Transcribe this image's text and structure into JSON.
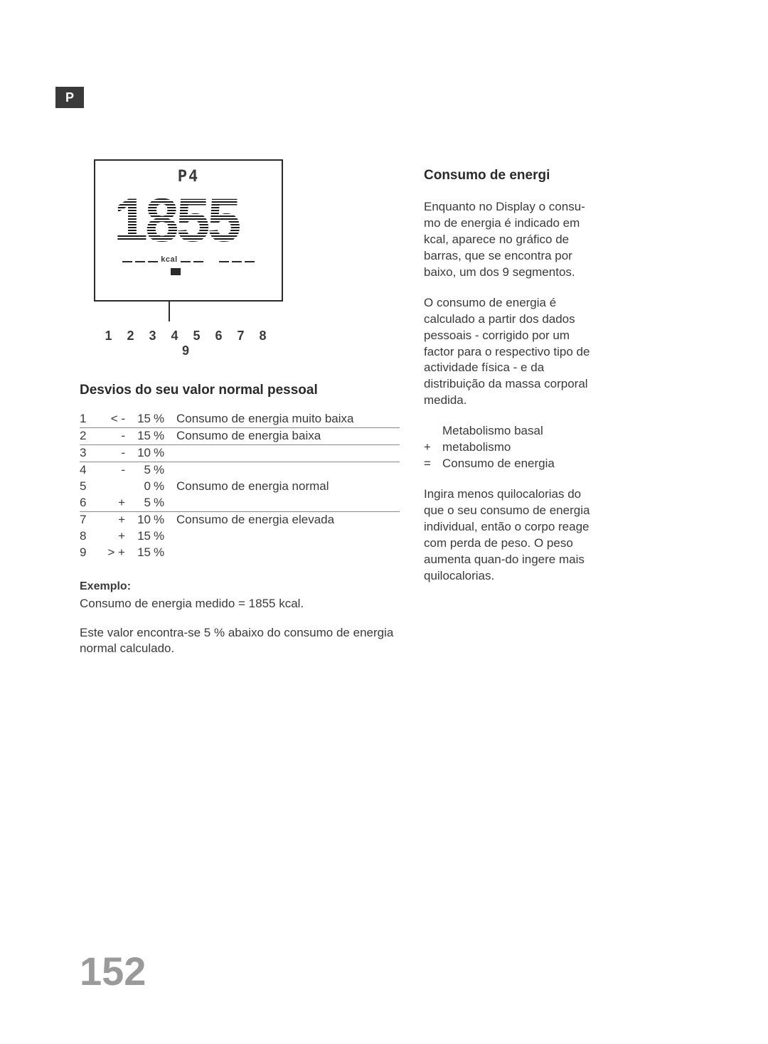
{
  "badge": "P",
  "display": {
    "label": "P4",
    "value": "1855",
    "unit": "kcal",
    "segments_total": 9,
    "segment_filled_index": 4
  },
  "segment_numbers": "1 2 3 4 5 6 7 8 9",
  "left_heading": "Desvios do seu valor normal pessoal",
  "deviation_rows": [
    {
      "idx": "1",
      "sign": "< -",
      "num": "15",
      "pct": "%",
      "desc": "Consumo de energia muito baixa",
      "border": true
    },
    {
      "idx": "2",
      "sign": "-",
      "num": "15",
      "pct": "%",
      "desc": "Consumo de energia baixa",
      "border": true
    },
    {
      "idx": "3",
      "sign": "-",
      "num": "10",
      "pct": "%",
      "desc": "",
      "border": true
    },
    {
      "idx": "4",
      "sign": "-",
      "num": "5",
      "pct": "%",
      "desc": "",
      "border": false
    },
    {
      "idx": "5",
      "sign": "",
      "num": "0",
      "pct": "%",
      "desc": "Consumo de energia normal",
      "border": false
    },
    {
      "idx": "6",
      "sign": "+",
      "num": "5",
      "pct": "%",
      "desc": "",
      "border": true
    },
    {
      "idx": "7",
      "sign": "+",
      "num": "10",
      "pct": "%",
      "desc": "Consumo de energia elevada",
      "border": false
    },
    {
      "idx": "8",
      "sign": "+",
      "num": "15",
      "pct": "%",
      "desc": "",
      "border": false
    },
    {
      "idx": "9",
      "sign": "> +",
      "num": "15",
      "pct": "%",
      "desc": "",
      "border": false
    }
  ],
  "example": {
    "label": "Exemplo:",
    "line1": "Consumo de energia medido = 1855 kcal.",
    "line2": "Este valor encontra-se 5 % abaixo do consumo de energia normal calculado."
  },
  "right_heading": "Consumo de energi",
  "right_p1": "Enquanto no Display o consu-mo de energia é indicado em kcal, aparece no gráfico de barras, que se encontra por baixo, um dos 9 segmentos.",
  "right_p2": "O consumo de energia é calculado a partir dos dados pessoais - corrigido por um factor para o respectivo tipo de actividade física - e da distribuição da massa corporal medida.",
  "formula": {
    "r1_op": "",
    "r1_txt": "Metabolismo basal",
    "r2_op": "+",
    "r2_txt": "metabolismo",
    "r3_op": "=",
    "r3_txt": "Consumo de energia"
  },
  "right_p3": "Ingira menos quilocalorias do que o seu consumo de energia individual, então o corpo reage com perda de peso. O peso aumenta quan-do ingere mais quilocalorias.",
  "page_number": "152",
  "styling": {
    "text_color": "#3a3a3a",
    "page_number_color": "#9a9a9a",
    "badge_bg": "#3a3a3a",
    "heading_fontsize_pt": 14,
    "body_fontsize_pt": 13,
    "pagenum_fontsize_pt": 42
  }
}
